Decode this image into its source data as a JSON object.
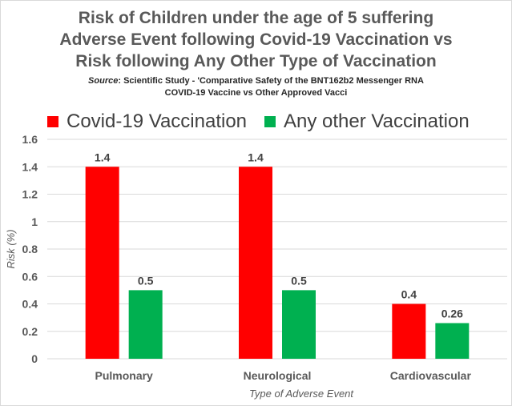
{
  "title_lines": [
    "Risk of Children under the age of 5 suffering",
    "Adverse Event following Covid-19 Vaccination vs",
    "Risk following Any Other Type of Vaccination"
  ],
  "source_label": "Source",
  "source_line1": ": Scientific Study - 'Comparative Safety of the BNT162b2 Messenger RNA",
  "source_line2": "COVID-19 Vaccine vs Other Approved Vacci",
  "colors": {
    "covid": "#ff0000",
    "other": "#00b050",
    "grid": "#d9d9d9",
    "axis_text": "#595959",
    "label_text": "#404040"
  },
  "chart_data": {
    "type": "bar",
    "categories": [
      "Pulmonary",
      "Neurological",
      "Cardiovascular"
    ],
    "series": [
      {
        "name": "Covid-19 Vaccination",
        "values": [
          1.4,
          1.4,
          0.4
        ],
        "labels": [
          "1.4",
          "1.4",
          "0.4"
        ]
      },
      {
        "name": "Any other Vaccination",
        "values": [
          0.5,
          0.5,
          0.26
        ],
        "labels": [
          "0.5",
          "0.5",
          "0.26"
        ]
      }
    ],
    "xlabel": "Type of Adverse Event",
    "ylabel": "Risk (%)",
    "ylim": [
      0,
      1.6
    ],
    "yticks": [
      "0",
      "0.2",
      "0.4",
      "0.6",
      "0.8",
      "1",
      "1.2",
      "1.4",
      "1.6"
    ],
    "grid": true,
    "legend_position": "top"
  }
}
